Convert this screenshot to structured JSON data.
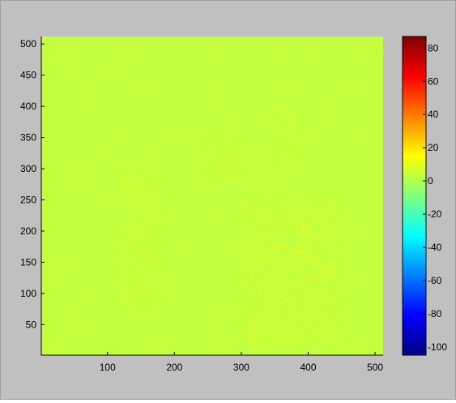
{
  "chart_data": {
    "type": "heatmap",
    "title": "",
    "xlabel": "",
    "ylabel": "",
    "xlim": [
      1,
      512
    ],
    "ylim": [
      1,
      512
    ],
    "xticks": [
      100,
      200,
      300,
      400,
      500
    ],
    "yticks": [
      50,
      100,
      150,
      200,
      250,
      300,
      350,
      400,
      450,
      500
    ],
    "x_tick_labels": [
      "100",
      "200",
      "300",
      "400",
      "500"
    ],
    "y_tick_labels": [
      "50",
      "100",
      "150",
      "200",
      "250",
      "300",
      "350",
      "400",
      "450",
      "500"
    ],
    "colormap": "jet",
    "clim": [
      -105,
      87
    ],
    "colorbar_ticks": [
      80,
      60,
      40,
      20,
      0,
      -20,
      -40,
      -60,
      -80,
      -100
    ],
    "colorbar_tick_labels": [
      "80",
      "60",
      "40",
      "20",
      "0",
      "-20",
      "-40",
      "-60",
      "-80",
      "-100"
    ],
    "background_value": 4,
    "noisy_regions": [
      {
        "x": [
          120,
          175
        ],
        "y": [
          80,
          300
        ],
        "peak_value": 15
      },
      {
        "x": [
          230,
          300
        ],
        "y": [
          280,
          350
        ],
        "peak_value": 12
      },
      {
        "x": [
          300,
          445
        ],
        "y": [
          20,
          250
        ],
        "peak_value": 20
      },
      {
        "x": [
          350,
          380
        ],
        "y": [
          300,
          400
        ],
        "peak_value": 12
      }
    ],
    "colors": {
      "figure_background": "#c0c0c0",
      "field_color": "#c3ff3c",
      "low": "#00007f",
      "high": "#7f0000"
    }
  }
}
